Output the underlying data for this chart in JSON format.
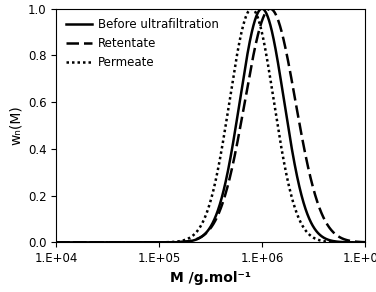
{
  "xlabel": "M /g.mol⁻¹",
  "ylabel": "wₙ(M)",
  "xlim_log": [
    4,
    7
  ],
  "ylim": [
    0,
    1
  ],
  "yticks": [
    0,
    0.2,
    0.4,
    0.6,
    0.8,
    1.0
  ],
  "curves": [
    {
      "label": "Before ultrafiltration",
      "linestyle": "solid",
      "linewidth": 1.8,
      "mu_log10": 6.0,
      "sigma_log10": 0.215,
      "color": "#000000"
    },
    {
      "label": "Retentate",
      "linestyle": "dashed",
      "linewidth": 1.8,
      "mu_log10": 6.08,
      "sigma_log10": 0.245,
      "color": "#000000"
    },
    {
      "label": "Permeate",
      "linestyle": "dotted",
      "linewidth": 1.8,
      "mu_log10": 5.9,
      "sigma_log10": 0.215,
      "color": "#000000"
    }
  ],
  "legend_loc": "upper left",
  "legend_fontsize": 8.5,
  "tick_fontsize": 8.5,
  "xlabel_fontsize": 10,
  "ylabel_fontsize": 10,
  "background_color": "#ffffff",
  "figsize": [
    3.76,
    2.92
  ],
  "dpi": 100
}
